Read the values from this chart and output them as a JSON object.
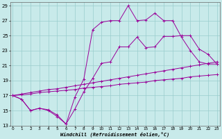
{
  "background_color": "#c8eaea",
  "line_color": "#990099",
  "grid_color": "#99cccc",
  "xlabel": "Windchill (Refroidissement éolien,°C)",
  "xlim": [
    -0.3,
    23.3
  ],
  "ylim": [
    13,
    29.5
  ],
  "yticks": [
    13,
    15,
    17,
    19,
    21,
    23,
    25,
    27,
    29
  ],
  "xticks": [
    0,
    1,
    2,
    3,
    4,
    5,
    6,
    7,
    8,
    9,
    10,
    11,
    12,
    13,
    14,
    15,
    16,
    17,
    18,
    19,
    20,
    21,
    22,
    23
  ],
  "lines": [
    {
      "x": [
        0,
        1,
        2,
        3,
        4,
        5,
        6,
        7,
        8,
        9,
        10,
        11,
        12,
        13,
        14,
        15,
        16,
        17,
        18,
        19,
        20,
        21,
        22,
        23
      ],
      "y": [
        17.0,
        16.5,
        15.0,
        15.3,
        15.0,
        14.2,
        13.2,
        16.8,
        19.2,
        25.8,
        26.8,
        27.0,
        27.0,
        29.0,
        27.0,
        27.1,
        28.0,
        27.0,
        27.0,
        24.8,
        23.0,
        21.5,
        21.2,
        21.2
      ]
    },
    {
      "x": [
        0,
        1,
        2,
        3,
        4,
        5,
        6,
        7,
        8,
        9,
        10,
        11,
        12,
        13,
        14,
        15,
        16,
        17,
        18,
        19,
        20,
        21,
        22,
        23
      ],
      "y": [
        17.0,
        16.5,
        15.0,
        15.3,
        15.1,
        14.4,
        13.2,
        15.2,
        17.5,
        19.3,
        21.3,
        21.5,
        23.5,
        23.5,
        24.8,
        23.4,
        23.5,
        24.9,
        24.9,
        25.0,
        25.0,
        23.2,
        22.5,
        21.2
      ]
    },
    {
      "x": [
        0,
        1,
        2,
        3,
        4,
        5,
        6,
        7,
        8,
        9,
        10,
        11,
        12,
        13,
        14,
        15,
        16,
        17,
        18,
        19,
        20,
        21,
        22,
        23
      ],
      "y": [
        17.0,
        17.2,
        17.4,
        17.6,
        17.8,
        17.9,
        18.1,
        18.3,
        18.5,
        18.7,
        18.9,
        19.1,
        19.3,
        19.5,
        19.7,
        19.9,
        20.1,
        20.3,
        20.5,
        20.7,
        20.9,
        21.1,
        21.3,
        21.5
      ]
    },
    {
      "x": [
        0,
        1,
        2,
        3,
        4,
        5,
        6,
        7,
        8,
        9,
        10,
        11,
        12,
        13,
        14,
        15,
        16,
        17,
        18,
        19,
        20,
        21,
        22,
        23
      ],
      "y": [
        17.0,
        17.1,
        17.2,
        17.4,
        17.5,
        17.6,
        17.7,
        17.8,
        18.0,
        18.1,
        18.2,
        18.3,
        18.5,
        18.6,
        18.7,
        18.8,
        19.0,
        19.1,
        19.2,
        19.3,
        19.5,
        19.6,
        19.7,
        19.8
      ]
    }
  ],
  "figsize": [
    3.2,
    2.0
  ],
  "dpi": 100
}
